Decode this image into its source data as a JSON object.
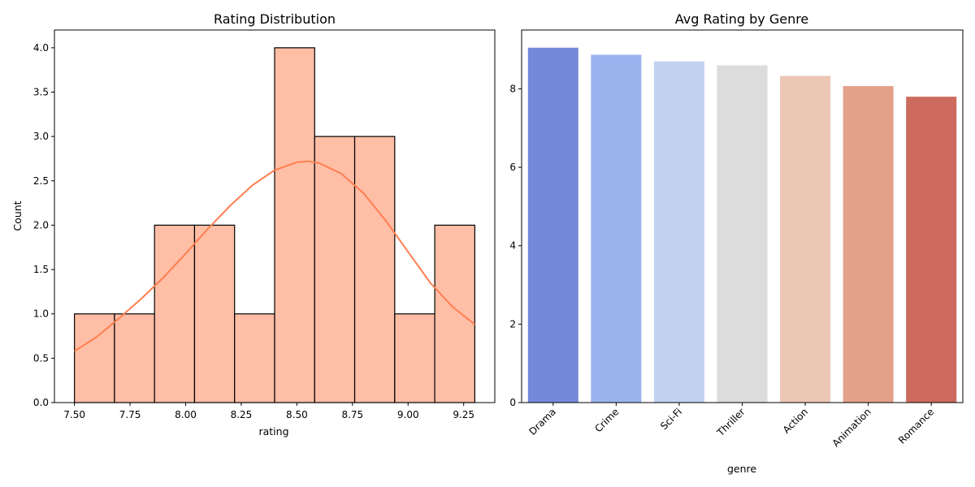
{
  "chart_data": [
    {
      "type": "bar",
      "subtype": "histogram-with-kde",
      "title": "Rating Distribution",
      "xlabel": "rating",
      "ylabel": "Count",
      "bins": [
        {
          "x0": 7.5,
          "x1": 7.68,
          "count": 1
        },
        {
          "x0": 7.68,
          "x1": 7.86,
          "count": 1
        },
        {
          "x0": 7.86,
          "x1": 8.04,
          "count": 2
        },
        {
          "x0": 8.04,
          "x1": 8.22,
          "count": 2
        },
        {
          "x0": 8.22,
          "x1": 8.4,
          "count": 1
        },
        {
          "x0": 8.4,
          "x1": 8.58,
          "count": 4
        },
        {
          "x0": 8.58,
          "x1": 8.76,
          "count": 3
        },
        {
          "x0": 8.76,
          "x1": 8.94,
          "count": 3
        },
        {
          "x0": 8.94,
          "x1": 9.12,
          "count": 1
        },
        {
          "x0": 9.12,
          "x1": 9.3,
          "count": 2
        }
      ],
      "kde": {
        "x": [
          7.5,
          7.6,
          7.7,
          7.8,
          7.9,
          8.0,
          8.1,
          8.2,
          8.3,
          8.4,
          8.5,
          8.55,
          8.6,
          8.7,
          8.8,
          8.9,
          9.0,
          9.1,
          9.2,
          9.3
        ],
        "y": [
          0.58,
          0.74,
          0.95,
          1.17,
          1.41,
          1.68,
          1.96,
          2.22,
          2.45,
          2.62,
          2.71,
          2.72,
          2.7,
          2.58,
          2.36,
          2.05,
          1.7,
          1.35,
          1.08,
          0.88
        ]
      },
      "xlim": [
        7.41,
        9.39
      ],
      "ylim": [
        0,
        4.2
      ],
      "xticks": [
        7.5,
        7.75,
        8.0,
        8.25,
        8.5,
        8.75,
        9.0,
        9.25
      ],
      "xtick_labels": [
        "7.50",
        "7.75",
        "8.00",
        "8.25",
        "8.50",
        "8.75",
        "9.00",
        "9.25"
      ],
      "yticks": [
        0.0,
        0.5,
        1.0,
        1.5,
        2.0,
        2.5,
        3.0,
        3.5,
        4.0
      ],
      "ytick_labels": [
        "0.0",
        "0.5",
        "1.0",
        "1.5",
        "2.0",
        "2.5",
        "3.0",
        "3.5",
        "4.0"
      ],
      "grid": false,
      "colors": {
        "bar_fill": "#ffbea6",
        "bar_edge": "#000000",
        "kde_line": "#ff7f50"
      }
    },
    {
      "type": "bar",
      "title": "Avg Rating by Genre",
      "xlabel": "genre",
      "ylabel": "",
      "categories": [
        "Drama",
        "Crime",
        "Sci-Fi",
        "Thriller",
        "Action",
        "Animation",
        "Romance"
      ],
      "values": [
        9.05,
        8.87,
        8.7,
        8.6,
        8.33,
        8.07,
        7.8
      ],
      "colors": [
        "#7489d9",
        "#9ab4f0",
        "#c1d1ef",
        "#dcdcdc",
        "#ecc7b6",
        "#e4a18a",
        "#cb6a5d"
      ],
      "ylim": [
        0,
        9.5
      ],
      "yticks": [
        0,
        2,
        4,
        6,
        8
      ],
      "ytick_labels": [
        "0",
        "2",
        "4",
        "6",
        "8"
      ],
      "xtick_rotation": 45,
      "grid": false
    }
  ]
}
